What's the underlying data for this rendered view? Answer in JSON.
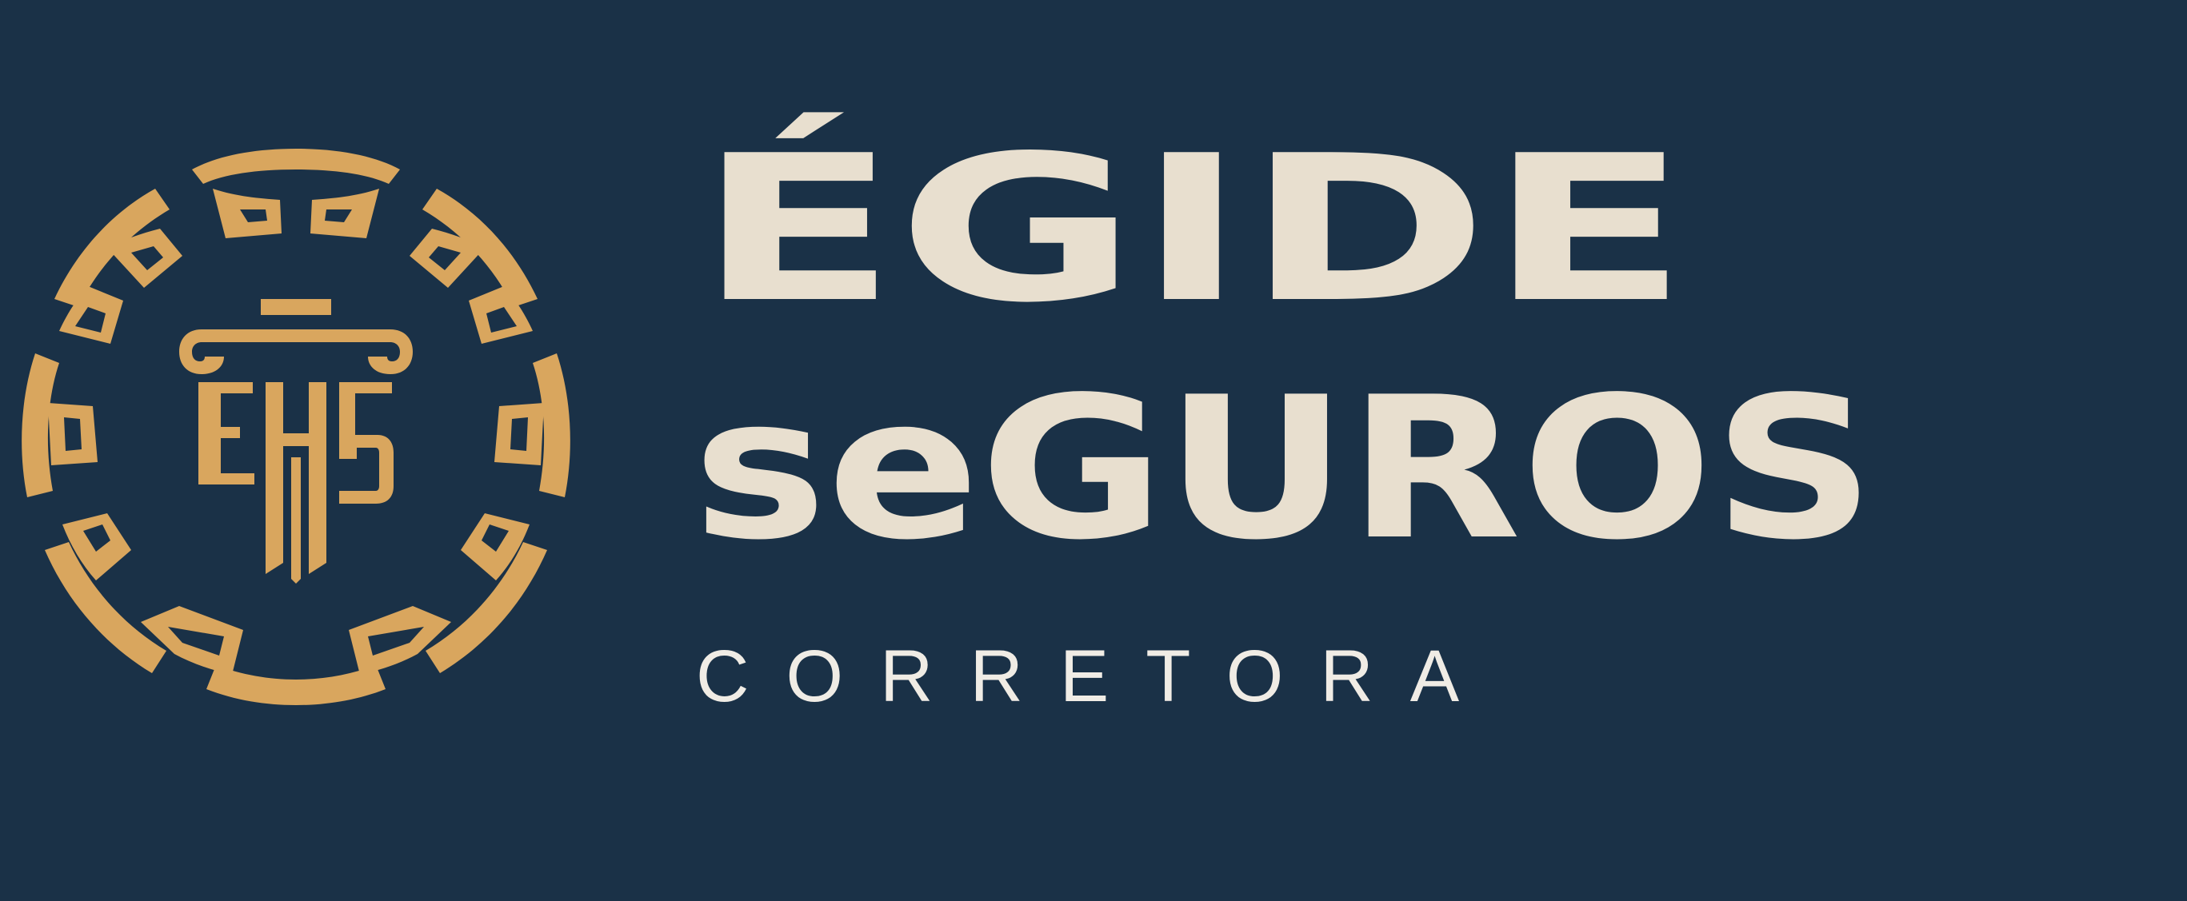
{
  "brand": {
    "name_line1": "ÉGIDE",
    "name_line2": "seGUROS",
    "tagline": "CORRETORA",
    "emblem_monogram": "EHG",
    "colors": {
      "background": "#1a3147",
      "gold": "#d9a65e",
      "cream": "#e8dfcf"
    }
  }
}
